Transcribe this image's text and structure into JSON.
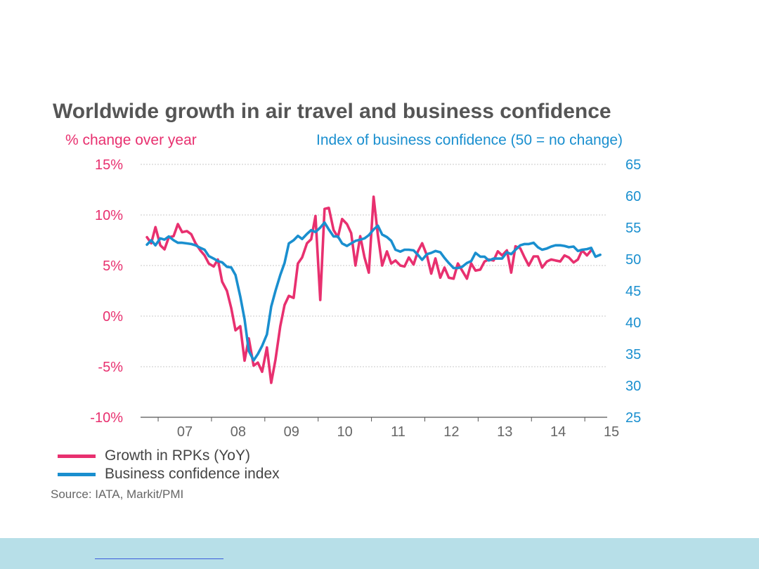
{
  "colors": {
    "rpk": "#e8306f",
    "confidence": "#1a8fcf",
    "title": "#555555",
    "grid": "#c8c8c8",
    "footer": "#b7dfe8"
  },
  "chart_data": {
    "type": "line",
    "title": "Worldwide growth in air travel and business confidence",
    "ylabel_left": "% change over year",
    "ylabel_right": "Index of business confidence (50 = no change)",
    "x_ticks": [
      "07",
      "08",
      "09",
      "10",
      "11",
      "12",
      "13",
      "14",
      "15"
    ],
    "xlim": [
      2006.67,
      2015.42
    ],
    "ylim_left": [
      -10,
      15
    ],
    "ylim_right": [
      25,
      65
    ],
    "y_ticks_left": [
      "15%",
      "10%",
      "5%",
      "0%",
      "-5%",
      "-10%"
    ],
    "y_tick_values_left": [
      15,
      10,
      5,
      0,
      -5,
      -10
    ],
    "y_ticks_right": [
      "65",
      "60",
      "55",
      "50",
      "45",
      "40",
      "35",
      "30",
      "25"
    ],
    "y_tick_values_right": [
      65,
      60,
      55,
      50,
      45,
      40,
      35,
      30,
      25
    ],
    "grid": "horizontal dotted",
    "legend_position": "bottom-left",
    "series": [
      {
        "name": "Growth in RPKs (YoY)",
        "axis": "left",
        "x": [
          2006.79,
          2006.87,
          2006.95,
          2007.04,
          2007.12,
          2007.2,
          2007.29,
          2007.37,
          2007.45,
          2007.54,
          2007.62,
          2007.7,
          2007.79,
          2007.87,
          2007.95,
          2008.04,
          2008.12,
          2008.2,
          2008.29,
          2008.37,
          2008.45,
          2008.54,
          2008.62,
          2008.7,
          2008.79,
          2008.87,
          2008.95,
          2009.04,
          2009.12,
          2009.2,
          2009.29,
          2009.37,
          2009.45,
          2009.54,
          2009.62,
          2009.7,
          2009.79,
          2009.87,
          2009.95,
          2010.04,
          2010.12,
          2010.2,
          2010.29,
          2010.37,
          2010.45,
          2010.54,
          2010.62,
          2010.7,
          2010.79,
          2010.87,
          2010.95,
          2011.04,
          2011.12,
          2011.2,
          2011.29,
          2011.37,
          2011.45,
          2011.54,
          2011.62,
          2011.7,
          2011.79,
          2011.87,
          2011.95,
          2012.04,
          2012.12,
          2012.2,
          2012.29,
          2012.37,
          2012.45,
          2012.54,
          2012.62,
          2012.7,
          2012.79,
          2012.87,
          2012.95,
          2013.04,
          2013.12,
          2013.2,
          2013.29,
          2013.37,
          2013.45,
          2013.54,
          2013.62,
          2013.7,
          2013.79,
          2013.87,
          2013.95,
          2014.04,
          2014.12,
          2014.2,
          2014.29,
          2014.37,
          2014.45,
          2014.54,
          2014.62,
          2014.7,
          2014.79,
          2014.87,
          2014.95,
          2015.04,
          2015.12,
          2015.2,
          2015.29
        ],
        "values": [
          7.8,
          7.2,
          8.8,
          7.0,
          6.6,
          7.8,
          7.9,
          9.1,
          8.3,
          8.4,
          8.1,
          7.2,
          6.5,
          6.0,
          5.2,
          4.9,
          5.6,
          3.4,
          2.5,
          0.8,
          -1.4,
          -1.0,
          -4.4,
          -2.2,
          -4.9,
          -4.6,
          -5.5,
          -3.1,
          -6.6,
          -4.3,
          -1.0,
          1.1,
          2.0,
          1.8,
          5.2,
          5.8,
          7.2,
          7.6,
          9.9,
          1.6,
          10.6,
          10.7,
          8.5,
          7.8,
          9.6,
          9.1,
          8.2,
          5.0,
          7.9,
          5.8,
          4.3,
          11.8,
          8.0,
          5.0,
          6.4,
          5.2,
          5.5,
          5.0,
          4.9,
          5.8,
          5.1,
          6.4,
          7.2,
          6.0,
          4.2,
          5.7,
          3.8,
          4.8,
          3.8,
          3.7,
          5.2,
          4.5,
          3.7,
          5.2,
          4.5,
          4.6,
          5.4,
          5.6,
          5.5,
          6.4,
          6.0,
          6.5,
          4.3,
          6.9,
          6.7,
          5.8,
          5.0,
          5.9,
          5.9,
          4.8,
          5.4,
          5.6,
          5.5,
          5.4,
          6.0,
          5.8,
          5.3,
          5.6,
          6.5,
          6.0,
          6.5,
          null,
          null
        ]
      },
      {
        "name": "Business confidence index",
        "axis": "right",
        "x": [
          2006.79,
          2006.87,
          2006.95,
          2007.04,
          2007.12,
          2007.2,
          2007.29,
          2007.37,
          2007.45,
          2007.54,
          2007.62,
          2007.7,
          2007.79,
          2007.87,
          2007.95,
          2008.04,
          2008.12,
          2008.2,
          2008.29,
          2008.37,
          2008.45,
          2008.54,
          2008.62,
          2008.7,
          2008.79,
          2008.87,
          2008.95,
          2009.04,
          2009.12,
          2009.2,
          2009.29,
          2009.37,
          2009.45,
          2009.54,
          2009.62,
          2009.7,
          2009.79,
          2009.87,
          2009.95,
          2010.04,
          2010.12,
          2010.2,
          2010.29,
          2010.37,
          2010.45,
          2010.54,
          2010.62,
          2010.7,
          2010.79,
          2010.87,
          2010.95,
          2011.04,
          2011.12,
          2011.2,
          2011.29,
          2011.37,
          2011.45,
          2011.54,
          2011.62,
          2011.7,
          2011.79,
          2011.87,
          2011.95,
          2012.04,
          2012.12,
          2012.2,
          2012.29,
          2012.37,
          2012.45,
          2012.54,
          2012.62,
          2012.7,
          2012.79,
          2012.87,
          2012.95,
          2013.04,
          2013.12,
          2013.2,
          2013.29,
          2013.37,
          2013.45,
          2013.54,
          2013.62,
          2013.7,
          2013.79,
          2013.87,
          2013.95,
          2014.04,
          2014.12,
          2014.2,
          2014.29,
          2014.37,
          2014.45,
          2014.54,
          2014.62,
          2014.7,
          2014.79,
          2014.87,
          2014.95,
          2015.04,
          2015.12,
          2015.2,
          2015.29
        ],
        "values": [
          52.3,
          53.0,
          52.2,
          53.3,
          53.1,
          53.6,
          53.0,
          52.6,
          52.6,
          52.5,
          52.4,
          52.2,
          51.8,
          51.5,
          50.5,
          50.1,
          49.7,
          49.5,
          48.8,
          48.7,
          47.5,
          44.1,
          40.5,
          35.5,
          34.0,
          35.0,
          36.3,
          38.1,
          42.5,
          45.0,
          47.5,
          49.4,
          52.5,
          53.0,
          53.7,
          53.2,
          54.0,
          54.6,
          54.3,
          55.0,
          55.8,
          54.7,
          53.6,
          53.6,
          52.5,
          52.1,
          52.5,
          52.9,
          53.1,
          53.3,
          53.8,
          54.7,
          55.3,
          53.9,
          53.5,
          52.9,
          51.5,
          51.2,
          51.5,
          51.5,
          51.4,
          50.7,
          49.9,
          50.8,
          51.0,
          51.3,
          51.1,
          50.2,
          49.4,
          48.6,
          48.6,
          48.8,
          49.4,
          49.7,
          51.0,
          50.4,
          50.4,
          49.8,
          50.1,
          50.1,
          50.1,
          51.1,
          50.8,
          51.5,
          52.2,
          52.4,
          52.4,
          52.6,
          51.9,
          51.5,
          51.7,
          52.0,
          52.2,
          52.2,
          52.1,
          51.9,
          52.0,
          51.3,
          51.5,
          51.6,
          51.8,
          50.4,
          50.7
        ]
      }
    ]
  },
  "legend": {
    "items": [
      {
        "label": "Growth in RPKs (YoY)"
      },
      {
        "label": "Business confidence index"
      }
    ]
  },
  "source": "Source: IATA, Markit/PMI"
}
